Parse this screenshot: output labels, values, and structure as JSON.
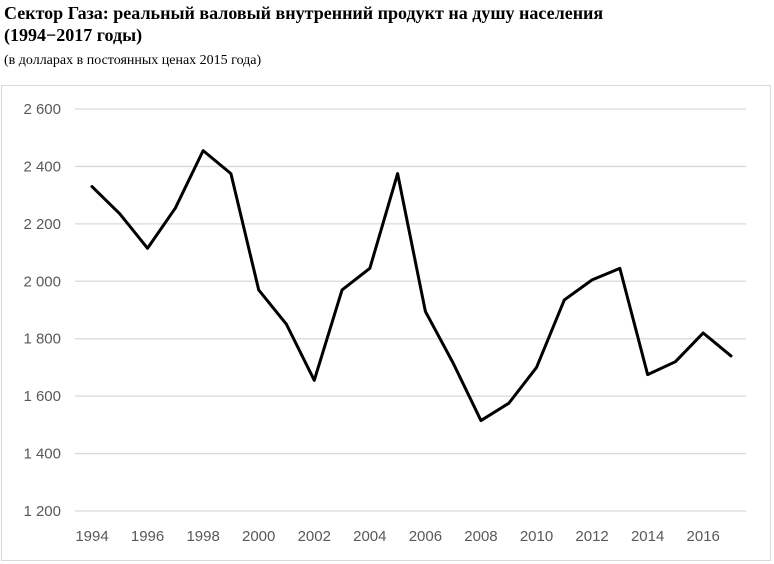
{
  "header": {
    "title_line1": "Сектор Газа: реальный валовый внутренний продукт на душу населения",
    "title_line2": "(1994−2017 годы)",
    "subtitle": "(в долларах в постоянных ценах 2015 года)"
  },
  "chart_data": {
    "type": "line",
    "title": "Сектор Газа: реальный валовый внутренний продукт на душу населения (1994−2017 годы)",
    "subtitle": "(в долларах в постоянных ценах 2015 года)",
    "xlabel": "",
    "ylabel": "",
    "x": [
      1994,
      1995,
      1996,
      1997,
      1998,
      1999,
      2000,
      2001,
      2002,
      2003,
      2004,
      2005,
      2006,
      2007,
      2008,
      2009,
      2010,
      2011,
      2012,
      2013,
      2014,
      2015,
      2016,
      2017
    ],
    "series": [
      {
        "values": [
          2330,
          2235,
          2115,
          2255,
          2455,
          2375,
          1970,
          1850,
          1655,
          1970,
          2045,
          2375,
          1895,
          1715,
          1515,
          1575,
          1700,
          1935,
          2005,
          2045,
          1675,
          1720,
          1820,
          1740
        ]
      }
    ],
    "ylim": [
      1200,
      2600
    ],
    "yticks": [
      1200,
      1400,
      1600,
      1800,
      2000,
      2200,
      2400,
      2600
    ],
    "ytick_labels": [
      "1 200",
      "1 400",
      "1 600",
      "1 800",
      "2 000",
      "2 200",
      "2 400",
      "2 600"
    ],
    "xtick_labels": [
      "1994",
      "1996",
      "1998",
      "2000",
      "2002",
      "2004",
      "2006",
      "2008",
      "2010",
      "2012",
      "2014",
      "2016"
    ],
    "grid": true,
    "line_color": "#000000",
    "grid_color": "#d9d9d9"
  }
}
